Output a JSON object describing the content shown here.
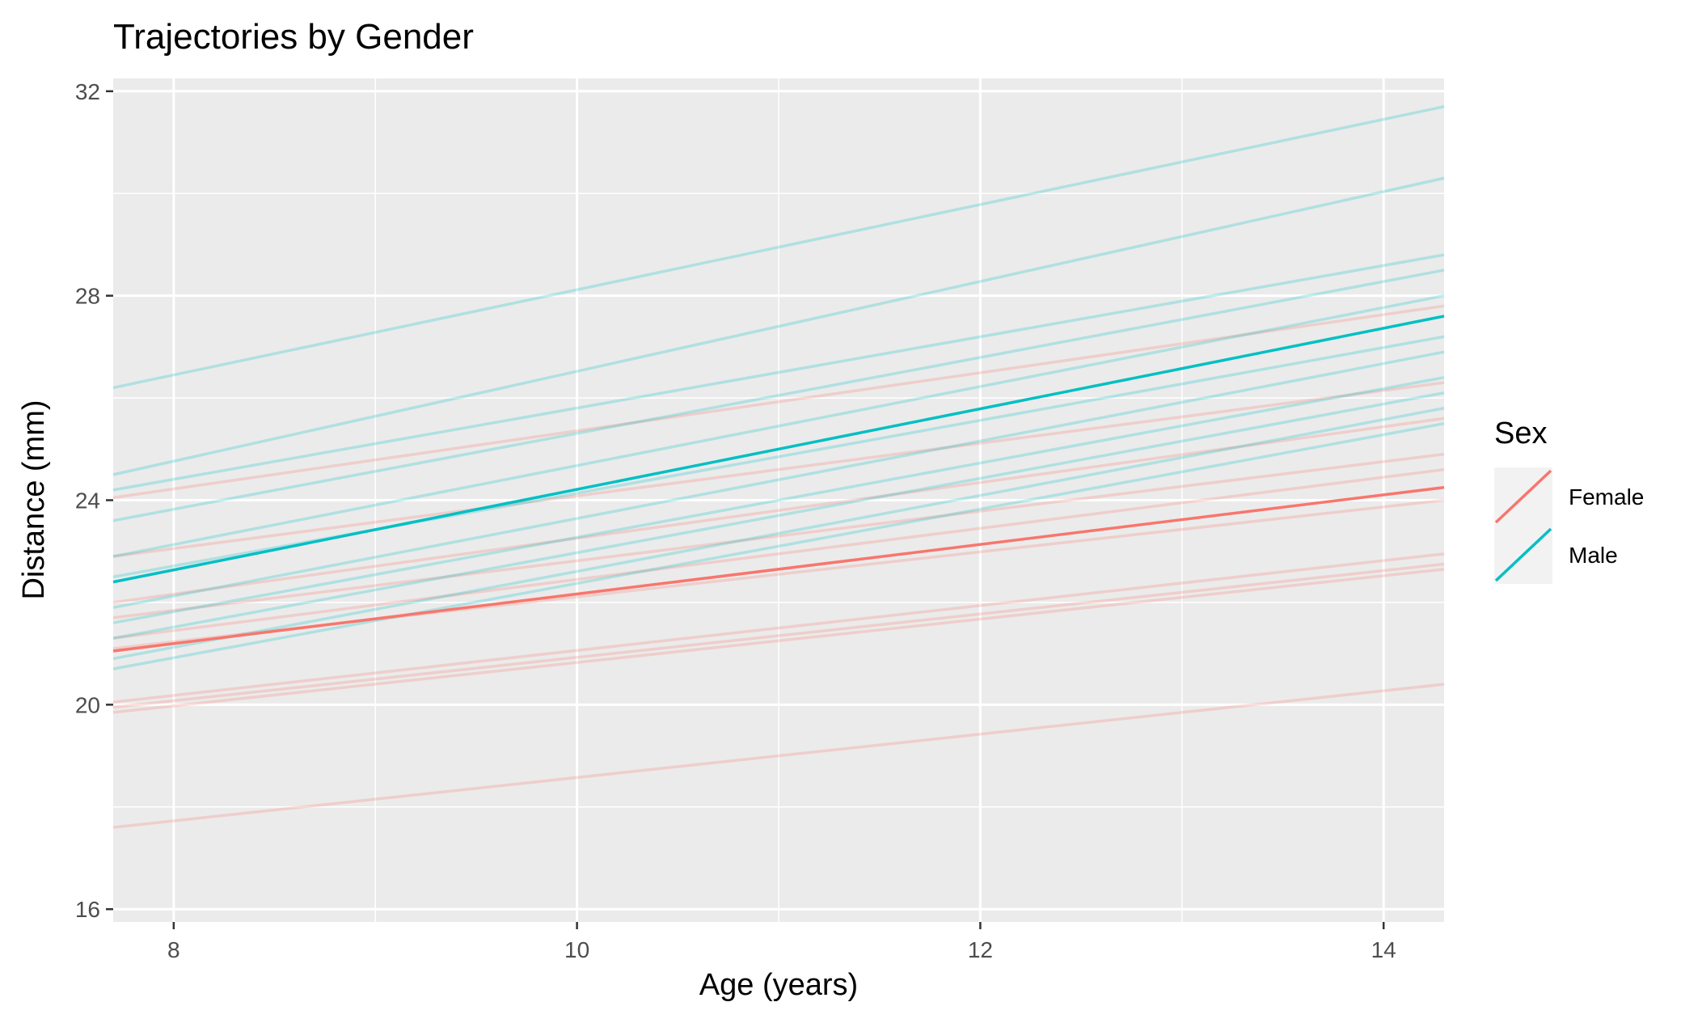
{
  "chart_data": {
    "type": "line",
    "title": "Trajectories by Gender",
    "xlabel": "Age (years)",
    "ylabel": "Distance (mm)",
    "xlim": [
      7.7,
      14.3
    ],
    "ylim": [
      15.75,
      32.25
    ],
    "x_ticks": [
      8,
      10,
      12,
      14
    ],
    "y_ticks": [
      16,
      20,
      24,
      28,
      32
    ],
    "grid": true,
    "legend": {
      "title": "Sex",
      "position": "right",
      "entries": [
        {
          "label": "Female",
          "color": "#F8766D"
        },
        {
          "label": "Male",
          "color": "#00BFC4"
        }
      ]
    },
    "mean_series": [
      {
        "name": "Female",
        "color": "#F8766D",
        "x": [
          7.7,
          14.3
        ],
        "y": [
          21.05,
          24.25
        ]
      },
      {
        "name": "Male",
        "color": "#00BFC4",
        "x": [
          7.7,
          14.3
        ],
        "y": [
          22.4,
          27.6
        ]
      }
    ],
    "individual_series": [
      {
        "group": "Female",
        "x": [
          7.7,
          14.3
        ],
        "y": [
          24.05,
          27.8
        ]
      },
      {
        "group": "Female",
        "x": [
          7.7,
          14.3
        ],
        "y": [
          22.9,
          26.3
        ]
      },
      {
        "group": "Female",
        "x": [
          7.7,
          14.3
        ],
        "y": [
          22.0,
          25.6
        ]
      },
      {
        "group": "Female",
        "x": [
          7.7,
          14.3
        ],
        "y": [
          21.7,
          24.9
        ]
      },
      {
        "group": "Female",
        "x": [
          7.7,
          14.3
        ],
        "y": [
          21.3,
          24.6
        ]
      },
      {
        "group": "Female",
        "x": [
          7.7,
          14.3
        ],
        "y": [
          21.1,
          24.0
        ]
      },
      {
        "group": "Female",
        "x": [
          7.7,
          14.3
        ],
        "y": [
          20.05,
          22.95
        ]
      },
      {
        "group": "Female",
        "x": [
          7.7,
          14.3
        ],
        "y": [
          19.95,
          22.75
        ]
      },
      {
        "group": "Female",
        "x": [
          7.7,
          14.3
        ],
        "y": [
          19.85,
          22.65
        ]
      },
      {
        "group": "Female",
        "x": [
          7.7,
          14.3
        ],
        "y": [
          17.6,
          20.4
        ]
      },
      {
        "group": "Male",
        "x": [
          7.7,
          14.3
        ],
        "y": [
          26.2,
          31.7
        ]
      },
      {
        "group": "Male",
        "x": [
          7.7,
          14.3
        ],
        "y": [
          24.5,
          30.3
        ]
      },
      {
        "group": "Male",
        "x": [
          7.7,
          14.3
        ],
        "y": [
          24.2,
          28.8
        ]
      },
      {
        "group": "Male",
        "x": [
          7.7,
          14.3
        ],
        "y": [
          23.6,
          28.5
        ]
      },
      {
        "group": "Male",
        "x": [
          7.7,
          14.3
        ],
        "y": [
          22.9,
          28.0
        ]
      },
      {
        "group": "Male",
        "x": [
          7.7,
          14.3
        ],
        "y": [
          22.5,
          27.2
        ]
      },
      {
        "group": "Male",
        "x": [
          7.7,
          14.3
        ],
        "y": [
          21.9,
          26.9
        ]
      },
      {
        "group": "Male",
        "x": [
          7.7,
          14.3
        ],
        "y": [
          21.6,
          26.4
        ]
      },
      {
        "group": "Male",
        "x": [
          7.7,
          14.3
        ],
        "y": [
          21.3,
          26.1
        ]
      },
      {
        "group": "Male",
        "x": [
          7.7,
          14.3
        ],
        "y": [
          20.9,
          25.8
        ]
      },
      {
        "group": "Male",
        "x": [
          7.7,
          14.3
        ],
        "y": [
          20.7,
          25.5
        ]
      }
    ]
  }
}
